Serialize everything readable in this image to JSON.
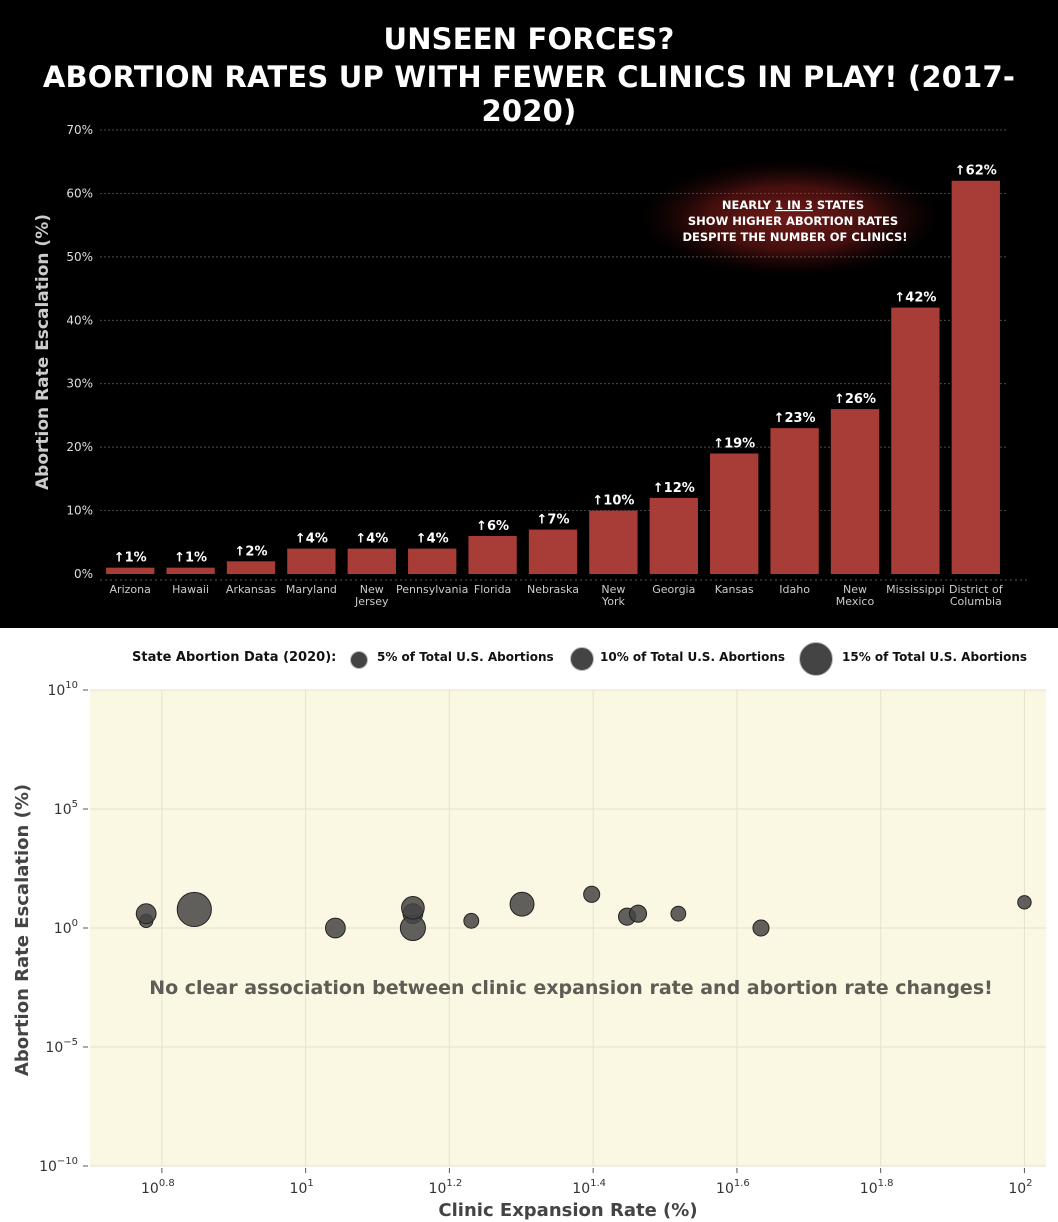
{
  "title": {
    "line1": "UNSEEN FORCES?",
    "line2": "ABORTION RATES UP WITH FEWER CLINICS IN PLAY! (2017-2020)"
  },
  "chart_data": [
    {
      "type": "bar",
      "ylabel": "Abortion Rate Escalation (%)",
      "xlabel": "",
      "ylim": [
        0,
        70
      ],
      "yticks": [
        "0%",
        "10%",
        "20%",
        "30%",
        "40%",
        "50%",
        "60%",
        "70%"
      ],
      "grid": true,
      "categories": [
        [
          "Arizona"
        ],
        [
          "Hawaii"
        ],
        [
          "Arkansas"
        ],
        [
          "Maryland"
        ],
        [
          "New",
          "Jersey"
        ],
        [
          "Pennsylvania"
        ],
        [
          "Florida"
        ],
        [
          "Nebraska"
        ],
        [
          "New",
          "York"
        ],
        [
          "Georgia"
        ],
        [
          "Kansas"
        ],
        [
          "Idaho"
        ],
        [
          "New",
          "Mexico"
        ],
        [
          "Mississippi"
        ],
        [
          "District of",
          "Columbia"
        ]
      ],
      "values": [
        1,
        1,
        2,
        4,
        4,
        4,
        6,
        7,
        10,
        12,
        19,
        23,
        26,
        42,
        62
      ],
      "data_labels": [
        "↑1%",
        "↑1%",
        "↑2%",
        "↑4%",
        "↑4%",
        "↑4%",
        "↑6%",
        "↑7%",
        "↑10%",
        "↑12%",
        "↑19%",
        "↑23%",
        "↑26%",
        "↑42%",
        "↑62%"
      ],
      "bar_color": "#a83c37",
      "annotation": {
        "pre": "NEARLY ",
        "emph": "1 IN 3",
        "post": " STATES",
        "line2": "SHOW HIGHER ABORTION RATES",
        "line3": "DESPITE THE NUMBER OF CLINICS!"
      }
    },
    {
      "type": "scatter",
      "xlabel": "Clinic Expansion Rate (%)",
      "ylabel": "Abortion Rate Escalation (%)",
      "xscale": "log",
      "yscale": "log",
      "xticks": [
        {
          "base": "10",
          "exp": "0.8"
        },
        {
          "base": "10",
          "exp": "1"
        },
        {
          "base": "10",
          "exp": "1.2"
        },
        {
          "base": "10",
          "exp": "1.4"
        },
        {
          "base": "10",
          "exp": "1.6"
        },
        {
          "base": "10",
          "exp": "1.8"
        },
        {
          "base": "10",
          "exp": "2"
        }
      ],
      "yticks": [
        {
          "base": "10",
          "exp": "10"
        },
        {
          "base": "10",
          "exp": "5"
        },
        {
          "base": "10",
          "exp": "0"
        },
        {
          "base": "10",
          "exp": "−5"
        },
        {
          "base": "10",
          "exp": "−10"
        }
      ],
      "xlim_log10": [
        0.7,
        2.03
      ],
      "ylim_log10": [
        -10,
        10
      ],
      "annotation": "No clear association between clinic expansion rate and abortion rate changes!",
      "legend": {
        "title": "State Abortion Data (2020):",
        "items": [
          {
            "label": "5% of Total U.S. Abortions",
            "share": 5
          },
          {
            "label": "10% of Total U.S. Abortions",
            "share": 10
          },
          {
            "label": "15% of Total U.S. Abortions",
            "share": 15
          }
        ]
      },
      "points": [
        {
          "x": 6.0,
          "y": 2,
          "share": 1
        },
        {
          "x": 6.0,
          "y": 4,
          "share": 4
        },
        {
          "x": 7.0,
          "y": 6,
          "share": 18
        },
        {
          "x": 11.0,
          "y": 1,
          "share": 4
        },
        {
          "x": 14.1,
          "y": 4,
          "share": 4
        },
        {
          "x": 14.1,
          "y": 1,
          "share": 8
        },
        {
          "x": 14.1,
          "y": 7,
          "share": 6
        },
        {
          "x": 17.0,
          "y": 2,
          "share": 1.5
        },
        {
          "x": 20.0,
          "y": 10,
          "share": 7
        },
        {
          "x": 25.0,
          "y": 26,
          "share": 2
        },
        {
          "x": 28.0,
          "y": 3,
          "share": 2.5
        },
        {
          "x": 29.0,
          "y": 4,
          "share": 2.5
        },
        {
          "x": 33.0,
          "y": 4,
          "share": 1.5
        },
        {
          "x": 43.0,
          "y": 1,
          "share": 2
        },
        {
          "x": 100.0,
          "y": 12,
          "share": 1
        }
      ],
      "point_color": "#444444",
      "bg_color": "#faf7e3"
    }
  ]
}
